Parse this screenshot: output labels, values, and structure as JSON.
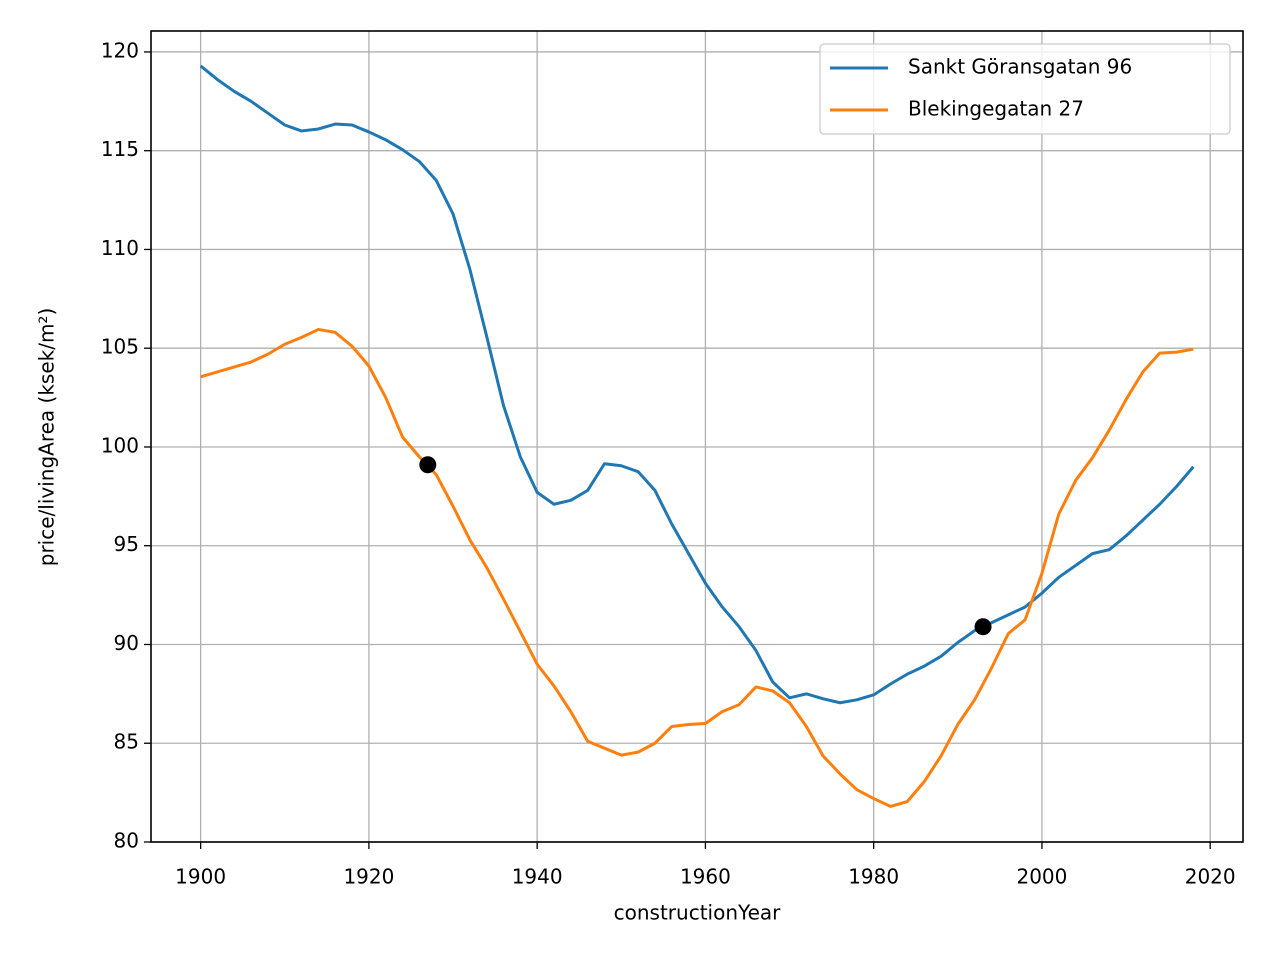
{
  "chart_data": {
    "type": "line",
    "xlabel": "constructionYear",
    "ylabel": "price/livingArea (ksek/m²)",
    "x": [
      1900,
      1902,
      1904,
      1906,
      1908,
      1910,
      1912,
      1914,
      1916,
      1918,
      1920,
      1922,
      1924,
      1926,
      1928,
      1930,
      1932,
      1934,
      1936,
      1938,
      1940,
      1942,
      1944,
      1946,
      1948,
      1950,
      1952,
      1954,
      1956,
      1958,
      1960,
      1962,
      1964,
      1966,
      1968,
      1970,
      1972,
      1974,
      1976,
      1978,
      1980,
      1982,
      1984,
      1986,
      1988,
      1990,
      1992,
      1994,
      1996,
      1998,
      2000,
      2002,
      2004,
      2006,
      2008,
      2010,
      2012,
      2014,
      2016,
      2018
    ],
    "series": [
      {
        "name": "Sankt Göransgatan 96",
        "color": "#1f77b4",
        "values": [
          119.29,
          118.6,
          118.0,
          117.5,
          116.9,
          116.3,
          116.0,
          116.1,
          116.35,
          116.3,
          115.95,
          115.55,
          115.05,
          114.45,
          113.5,
          111.8,
          109.0,
          105.6,
          102.1,
          99.5,
          97.7,
          97.1,
          97.3,
          97.8,
          99.15,
          99.05,
          98.75,
          97.8,
          96.1,
          94.6,
          93.1,
          91.9,
          90.9,
          89.7,
          88.1,
          87.3,
          87.5,
          87.25,
          87.05,
          87.2,
          87.45,
          88.0,
          88.5,
          88.9,
          89.4,
          90.1,
          90.7,
          91.1,
          91.5,
          91.9,
          92.6,
          93.4,
          94.0,
          94.6,
          94.8,
          95.5,
          96.3,
          97.1,
          98.0,
          99.0
        ]
      },
      {
        "name": "Blekingegatan 27",
        "color": "#ff7f0e",
        "values": [
          103.55,
          103.8,
          104.05,
          104.3,
          104.7,
          105.2,
          105.55,
          105.95,
          105.8,
          105.1,
          104.1,
          102.5,
          100.5,
          99.5,
          98.6,
          97.0,
          95.3,
          93.9,
          92.3,
          90.65,
          89.0,
          87.9,
          86.6,
          85.1,
          84.75,
          84.4,
          84.55,
          85.0,
          85.85,
          85.95,
          86.0,
          86.6,
          86.95,
          87.85,
          87.65,
          87.05,
          85.85,
          84.35,
          83.45,
          82.65,
          82.2,
          81.8,
          82.05,
          83.05,
          84.35,
          85.95,
          87.2,
          88.8,
          90.55,
          91.25,
          93.6,
          96.6,
          98.3,
          99.45,
          100.85,
          102.4,
          103.8,
          104.75,
          104.8,
          104.95
        ]
      }
    ],
    "markers": {
      "x": [
        1927,
        1993
      ],
      "values": [
        99.1,
        90.9
      ],
      "color": "#000000"
    },
    "xlim": [
      1894.1,
      2023.9
    ],
    "xticks": [
      1900,
      1920,
      1940,
      1960,
      1980,
      2000,
      2020
    ],
    "ylim": [
      80,
      121.06
    ],
    "yticks": [
      80,
      85,
      90,
      95,
      100,
      105,
      110,
      115,
      120
    ],
    "grid": true,
    "legend": "upper right"
  }
}
